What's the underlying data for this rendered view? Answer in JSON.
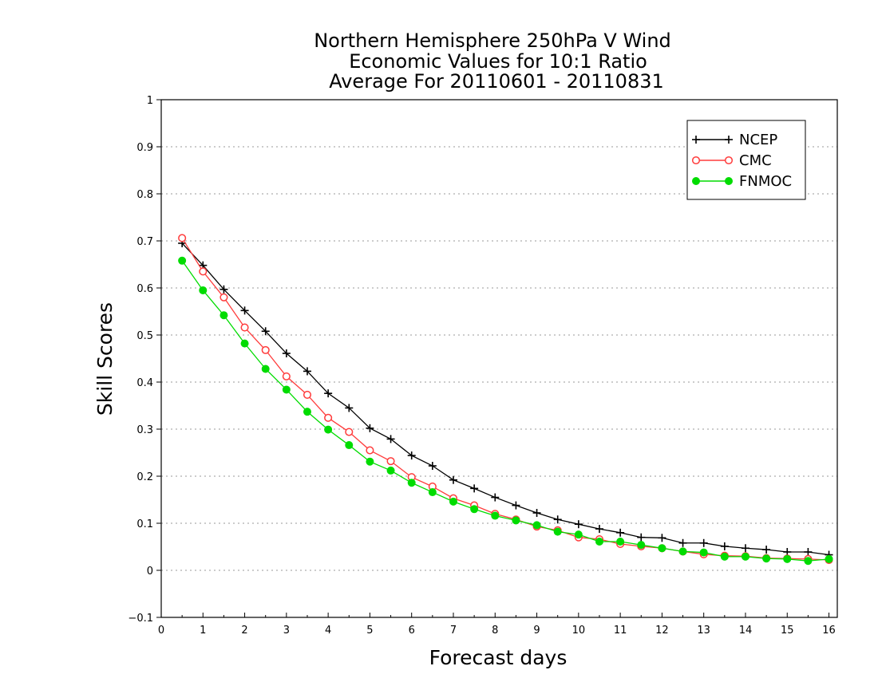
{
  "chart_data": {
    "type": "line",
    "title_lines": [
      "Northern Hemisphere 250hPa V Wind",
      "Economic Values for 10:1 Ratio",
      "Average For 20110601 - 20110831"
    ],
    "xlabel": "Forecast days",
    "ylabel": "Skill Scores",
    "xlim": [
      0,
      16.2
    ],
    "ylim": [
      -0.1,
      1
    ],
    "xticks": [
      "0",
      "1",
      "2",
      "3",
      "4",
      "5",
      "6",
      "7",
      "8",
      "9",
      "10",
      "11",
      "12",
      "13",
      "14",
      "15",
      "16"
    ],
    "yticks": [
      "−0.1",
      "0",
      "0.1",
      "0.2",
      "0.3",
      "0.4",
      "0.5",
      "0.6",
      "0.7",
      "0.8",
      "0.9",
      "1"
    ],
    "ytick_values": [
      -0.1,
      0,
      0.1,
      0.2,
      0.3,
      0.4,
      0.5,
      0.6,
      0.7,
      0.8,
      0.9,
      1
    ],
    "grid": "horizontal dotted",
    "legend_position": "top-right",
    "x": [
      0.5,
      1,
      1.5,
      2,
      2.5,
      3,
      3.5,
      4,
      4.5,
      5,
      5.5,
      6,
      6.5,
      7,
      7.5,
      8,
      8.5,
      9,
      9.5,
      10,
      10.5,
      11,
      11.5,
      12,
      12.5,
      13,
      13.5,
      14,
      14.5,
      15,
      15.5,
      16
    ],
    "series": [
      {
        "name": "NCEP",
        "color": "#000000",
        "marker": "plus",
        "values": [
          0.695,
          0.648,
          0.597,
          0.552,
          0.508,
          0.461,
          0.423,
          0.376,
          0.345,
          0.302,
          0.279,
          0.244,
          0.222,
          0.192,
          0.174,
          0.155,
          0.138,
          0.122,
          0.108,
          0.098,
          0.088,
          0.08,
          0.07,
          0.069,
          0.058,
          0.058,
          0.051,
          0.047,
          0.044,
          0.039,
          0.039,
          0.033
        ]
      },
      {
        "name": "CMC",
        "color": "#ff3c3c",
        "marker": "open-circle",
        "values": [
          0.706,
          0.635,
          0.58,
          0.516,
          0.468,
          0.412,
          0.373,
          0.324,
          0.294,
          0.255,
          0.232,
          0.198,
          0.178,
          0.153,
          0.138,
          0.12,
          0.108,
          0.093,
          0.085,
          0.07,
          0.066,
          0.056,
          0.051,
          0.047,
          0.04,
          0.034,
          0.031,
          0.03,
          0.026,
          0.025,
          0.024,
          0.022
        ]
      },
      {
        "name": "FNMOC",
        "color": "#00dc00",
        "marker": "filled-circle",
        "values": [
          0.658,
          0.595,
          0.542,
          0.482,
          0.428,
          0.384,
          0.337,
          0.299,
          0.266,
          0.231,
          0.212,
          0.186,
          0.166,
          0.146,
          0.13,
          0.116,
          0.106,
          0.096,
          0.082,
          0.076,
          0.061,
          0.061,
          0.054,
          0.047,
          0.04,
          0.038,
          0.029,
          0.029,
          0.025,
          0.024,
          0.02,
          0.024
        ]
      }
    ]
  }
}
